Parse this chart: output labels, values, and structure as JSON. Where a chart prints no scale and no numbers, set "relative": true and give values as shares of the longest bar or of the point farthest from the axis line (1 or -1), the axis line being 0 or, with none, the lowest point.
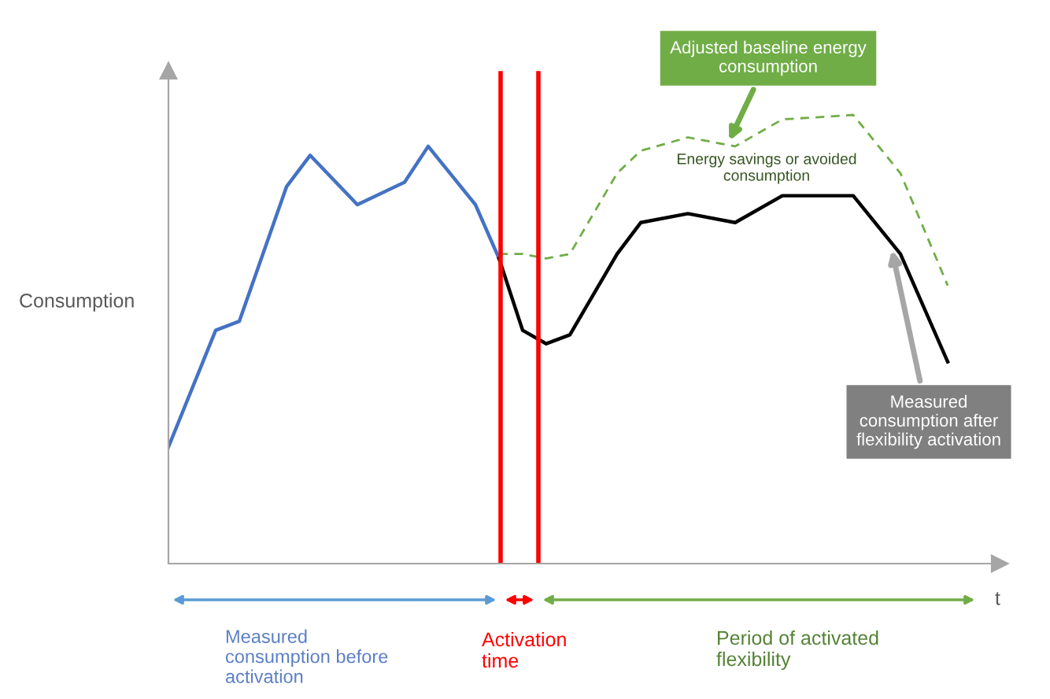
{
  "chart_data": {
    "type": "line",
    "relative": true,
    "xlabel": "t",
    "ylabel": "Consumption",
    "marker": "none",
    "categories": [
      null,
      null,
      null,
      null,
      null,
      null,
      null,
      null,
      null,
      null,
      null,
      null,
      null,
      null,
      null,
      null,
      null,
      null,
      null,
      null,
      null,
      null,
      null,
      null,
      null,
      null,
      null,
      null,
      null,
      null,
      null,
      null,
      null,
      null,
      null,
      null
    ],
    "series": [
      {
        "color": "#4472c4",
        "line_style": "solid",
        "values": [
          0.26,
          null,
          0.52,
          0.54,
          null,
          0.84,
          0.91,
          null,
          0.8,
          null,
          0.85,
          0.93,
          null,
          0.8,
          0.68,
          null,
          null,
          null,
          null,
          null,
          null,
          null,
          null,
          null,
          null,
          null,
          null,
          null,
          null,
          null,
          null,
          null,
          null,
          null,
          null,
          null
        ]
      },
      {
        "color": "#000000",
        "line_style": "solid",
        "values": [
          null,
          null,
          null,
          null,
          null,
          null,
          null,
          null,
          null,
          null,
          null,
          null,
          null,
          null,
          0.68,
          0.52,
          0.49,
          0.51,
          null,
          0.69,
          0.76,
          null,
          0.78,
          null,
          0.76,
          null,
          0.82,
          null,
          null,
          0.82,
          null,
          0.69,
          null,
          0.45,
          null,
          null
        ]
      },
      {
        "color": "#70ad47",
        "line_style": "dashed",
        "values": [
          null,
          null,
          null,
          null,
          null,
          null,
          null,
          null,
          null,
          null,
          null,
          null,
          null,
          null,
          0.69,
          0.69,
          0.68,
          0.69,
          null,
          0.87,
          0.92,
          null,
          0.95,
          null,
          0.93,
          null,
          0.99,
          null,
          null,
          1.0,
          null,
          0.87,
          null,
          0.62,
          null,
          null
        ]
      }
    ],
    "annotations": [
      "Adjusted baseline energy\nconsumption",
      "Energy savings or avoided\nconsumption",
      "Measured\nconsumption after\nflexibility activation",
      "Measured\nconsumption before\nactivation",
      "Activation\ntime",
      "Period of activated\nflexibility"
    ]
  }
}
